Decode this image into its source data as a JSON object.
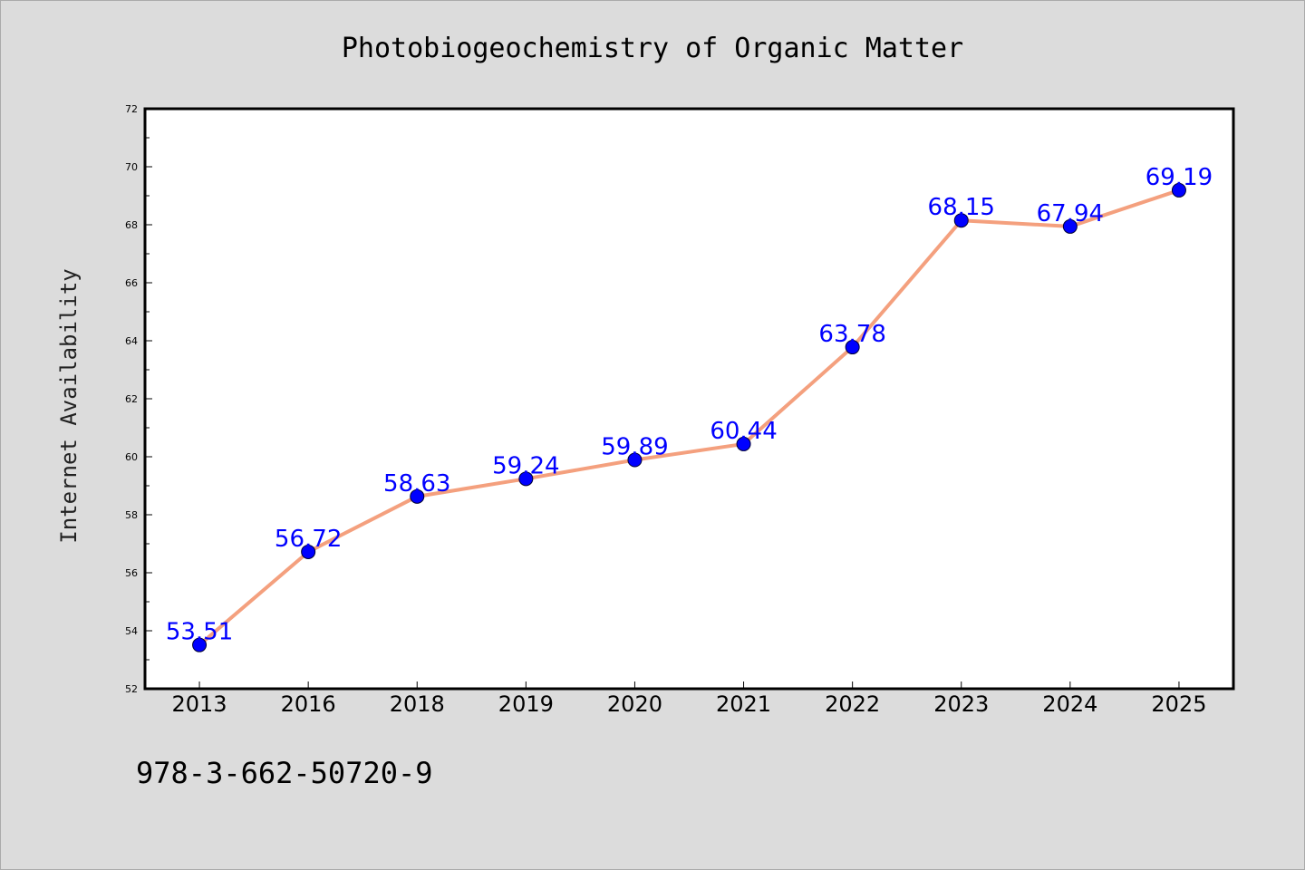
{
  "colors": {
    "background": "#dcdcdc",
    "plot_background": "#ffffff",
    "line": "#f4a07e",
    "marker": "#0000ff",
    "data_label": "#0000ff"
  },
  "footer_text": "978-3-662-50720-9",
  "chart_data": {
    "type": "line",
    "title": "Photobiogeochemistry of Organic Matter",
    "xlabel": "",
    "ylabel": "Internet Availability",
    "categories": [
      "2013",
      "2016",
      "2018",
      "2019",
      "2020",
      "2021",
      "2022",
      "2023",
      "2024",
      "2025"
    ],
    "series": [
      {
        "values": [
          53.51,
          56.72,
          58.63,
          59.24,
          59.89,
          60.44,
          63.78,
          68.15,
          67.94,
          69.19
        ],
        "labels": [
          "53.51",
          "56.72",
          "58.63",
          "59.24",
          "59.89",
          "60.44",
          "63.78",
          "68.15",
          "67.94",
          "69.19"
        ]
      }
    ],
    "ylim": [
      52,
      72
    ],
    "yticks": [
      "52",
      "54",
      "56",
      "58",
      "60",
      "62",
      "64",
      "66",
      "68",
      "70",
      "72"
    ],
    "grid": false,
    "legend": "none"
  }
}
